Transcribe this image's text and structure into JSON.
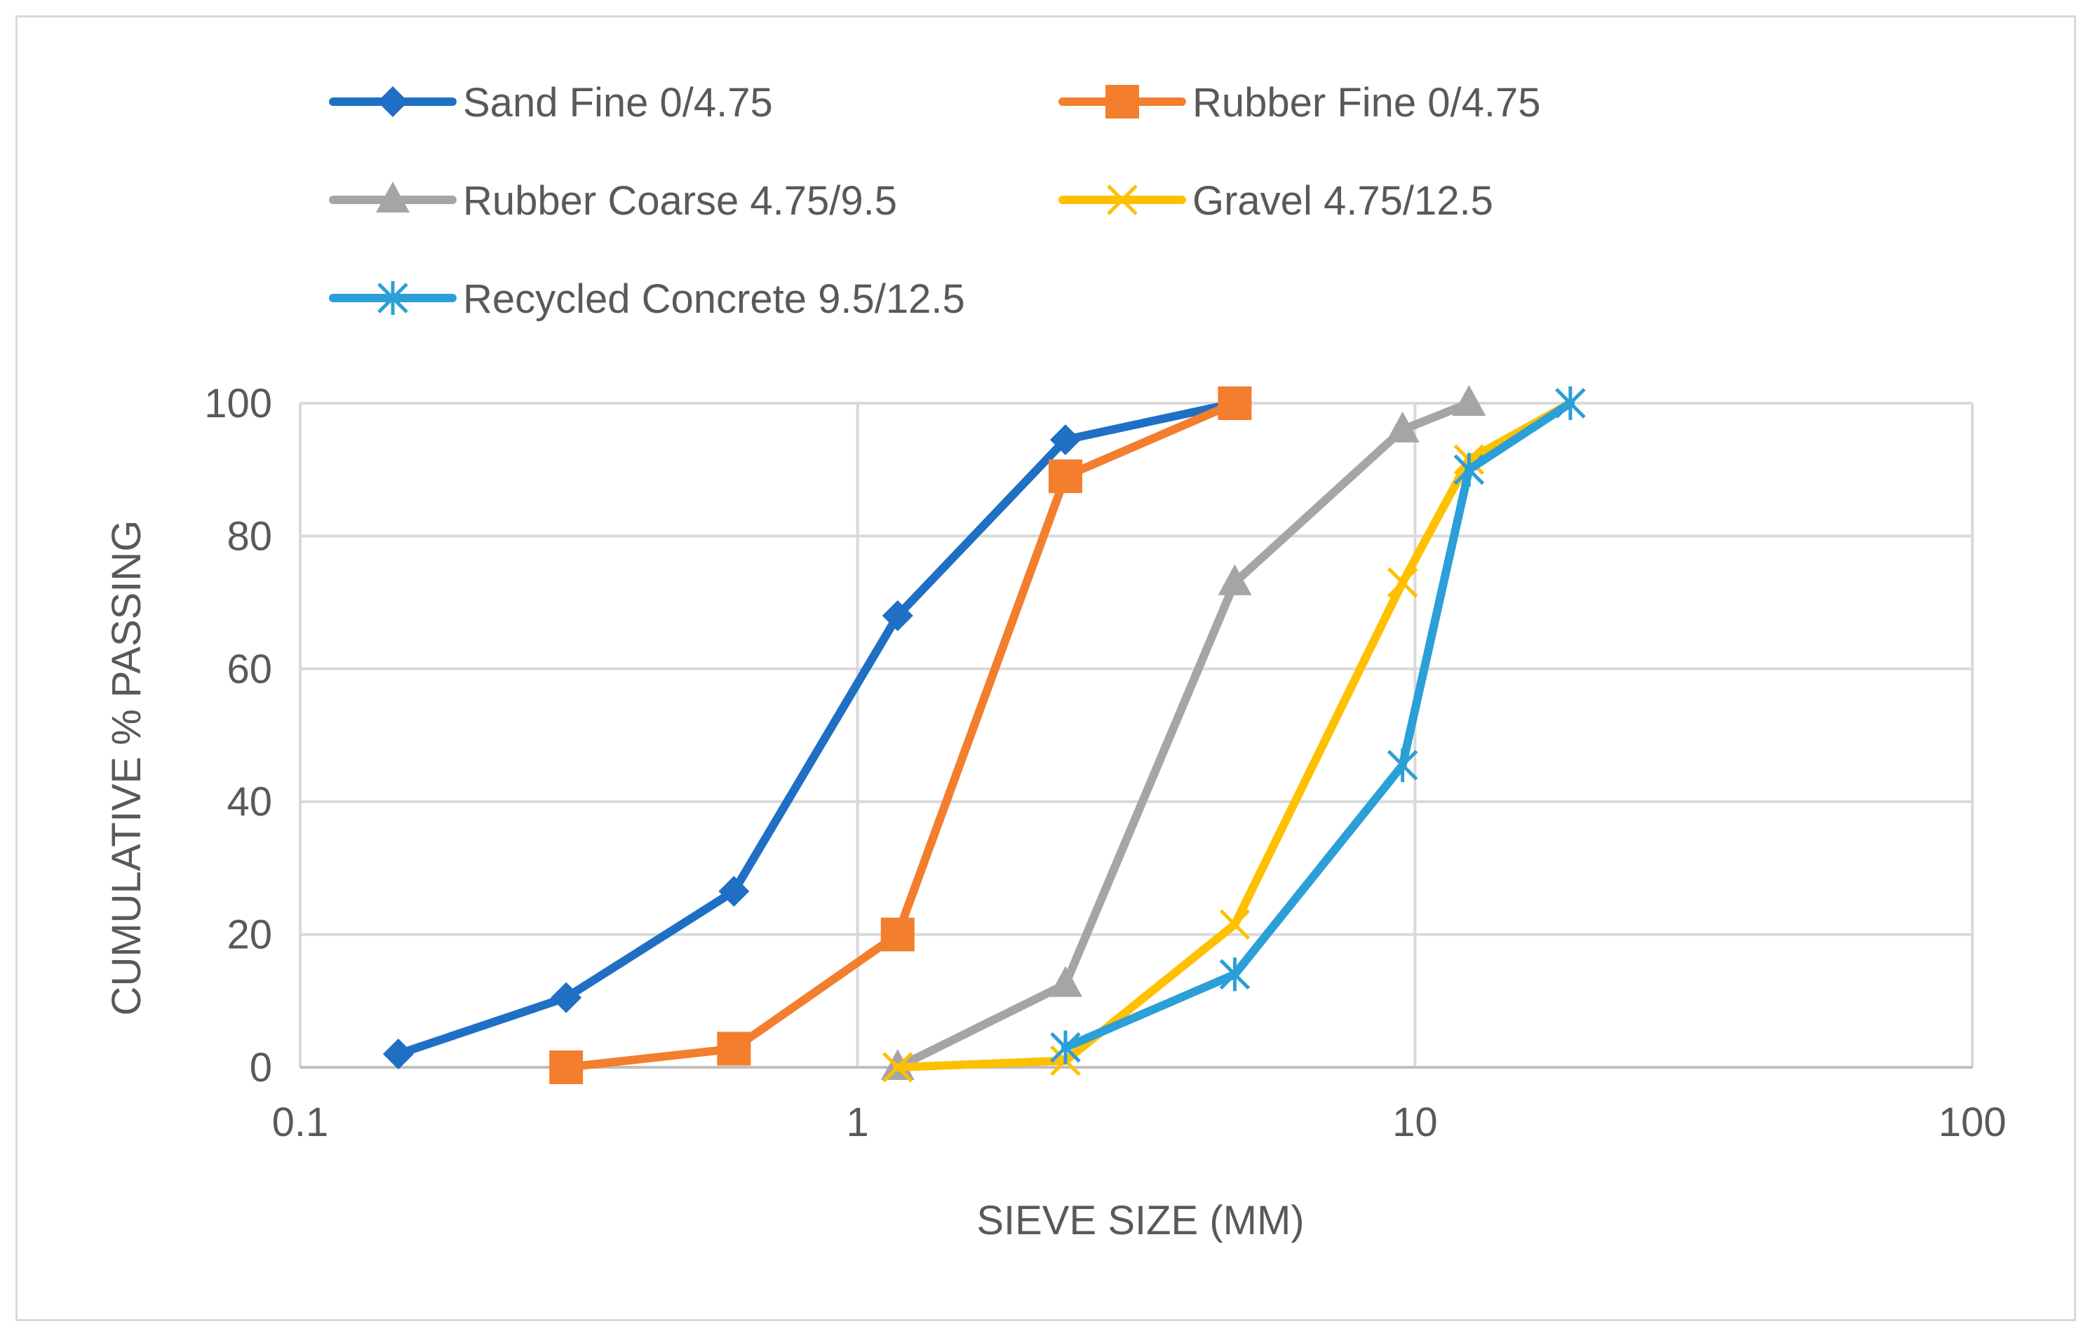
{
  "chart_data": {
    "type": "line",
    "title": "",
    "xlabel": "SIEVE SIZE (MM)",
    "ylabel": "CUMULATIVE % PASSING",
    "xscale": "log",
    "xlim": [
      0.1,
      100
    ],
    "ylim": [
      0,
      100
    ],
    "xticks": [
      "0.1",
      "1",
      "10",
      "100"
    ],
    "yticks": [
      "0",
      "20",
      "40",
      "60",
      "80",
      "100"
    ],
    "grid": true,
    "legend_position": "top",
    "series": [
      {
        "name": "Sand Fine 0/4.75",
        "color": "#1f6fc5",
        "marker": "diamond",
        "x": [
          0.15,
          0.3,
          0.6,
          1.18,
          2.36,
          4.75
        ],
        "y": [
          2,
          10.5,
          26.5,
          68,
          94.5,
          100
        ]
      },
      {
        "name": "Rubber Fine 0/4.75",
        "color": "#f27e2e",
        "marker": "square",
        "x": [
          0.3,
          0.6,
          1.18,
          2.36,
          4.75
        ],
        "y": [
          0,
          2.8,
          20,
          89,
          100
        ]
      },
      {
        "name": "Rubber Coarse 4.75/9.5",
        "color": "#a5a5a5",
        "marker": "triangle",
        "x": [
          1.18,
          2.36,
          4.75,
          9.5,
          12.5
        ],
        "y": [
          0,
          12.5,
          73,
          96,
          100
        ]
      },
      {
        "name": "Gravel 4.75/12.5",
        "color": "#ffc000",
        "marker": "x",
        "x": [
          1.18,
          2.36,
          4.75,
          9.5,
          12.5,
          19
        ],
        "y": [
          0,
          1,
          21.5,
          73,
          91.5,
          100
        ]
      },
      {
        "name": "Recycled Concrete 9.5/12.5",
        "color": "#2a9fd8",
        "marker": "star",
        "x": [
          2.36,
          4.75,
          9.5,
          12.5,
          19
        ],
        "y": [
          3,
          14,
          45.5,
          90,
          100
        ]
      }
    ]
  }
}
